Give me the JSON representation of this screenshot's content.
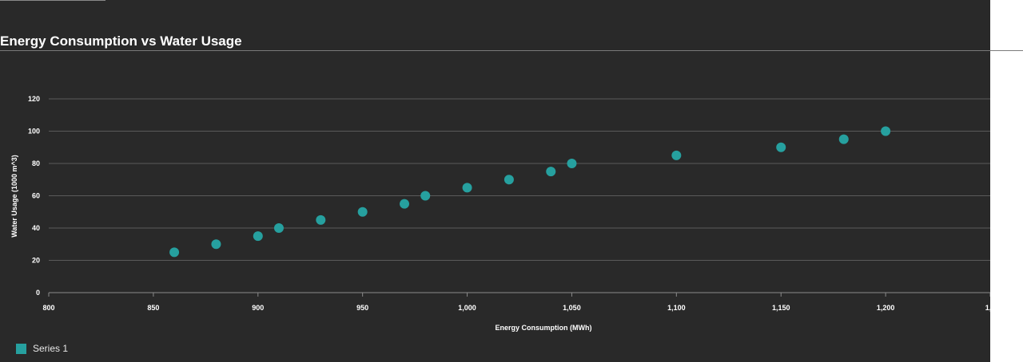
{
  "colors": {
    "background": "#292929",
    "text": "#ffffff",
    "grid": "#5a5a5a",
    "series": "#26a09f"
  },
  "chart_data": {
    "type": "scatter",
    "title": "Energy Consumption vs Water Usage",
    "xlabel": "Energy Consumption (MWh)",
    "ylabel": "Water Usage (1000 m^3)",
    "xlim": [
      800,
      1250
    ],
    "ylim": [
      0,
      120
    ],
    "x_ticks": [
      "800",
      "850",
      "900",
      "950",
      "1,000",
      "1,050",
      "1,100",
      "1,150",
      "1,200",
      "1,2"
    ],
    "y_ticks": [
      "0",
      "20",
      "40",
      "60",
      "80",
      "100",
      "120"
    ],
    "grid": true,
    "legend_position": "bottom-left",
    "series": [
      {
        "name": "Series 1",
        "color": "#26a09f",
        "points": [
          {
            "x": 860,
            "y": 25
          },
          {
            "x": 880,
            "y": 30
          },
          {
            "x": 900,
            "y": 35
          },
          {
            "x": 910,
            "y": 40
          },
          {
            "x": 930,
            "y": 45
          },
          {
            "x": 950,
            "y": 50
          },
          {
            "x": 970,
            "y": 55
          },
          {
            "x": 980,
            "y": 60
          },
          {
            "x": 1000,
            "y": 65
          },
          {
            "x": 1020,
            "y": 70
          },
          {
            "x": 1040,
            "y": 75
          },
          {
            "x": 1050,
            "y": 80
          },
          {
            "x": 1100,
            "y": 85
          },
          {
            "x": 1150,
            "y": 90
          },
          {
            "x": 1180,
            "y": 95
          },
          {
            "x": 1200,
            "y": 100
          }
        ]
      }
    ]
  }
}
